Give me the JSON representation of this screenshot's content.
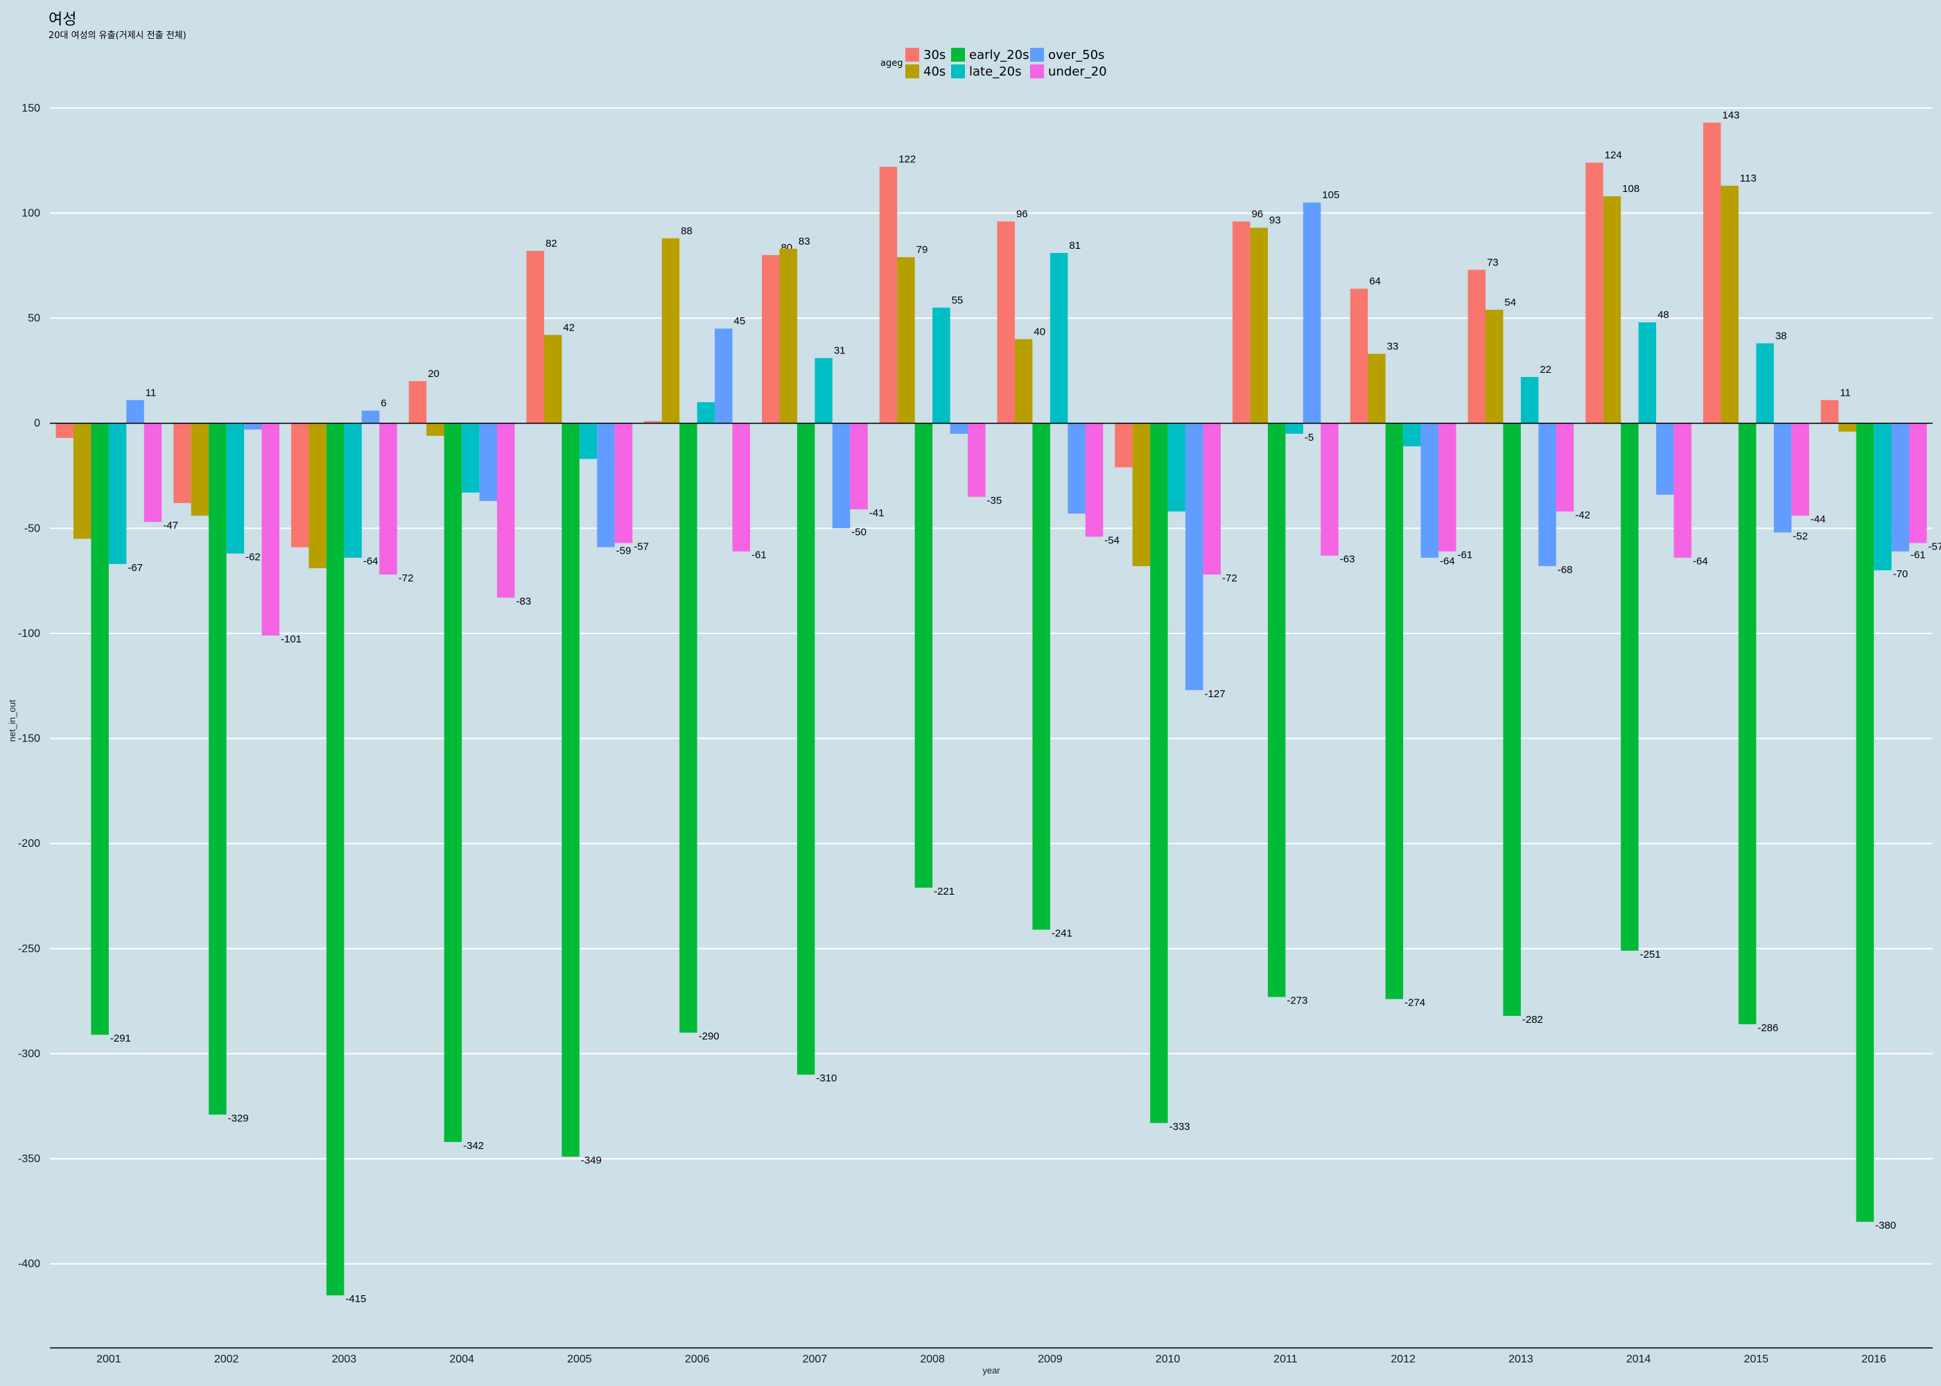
{
  "chart_data": {
    "type": "bar",
    "title": "여성",
    "subtitle": "20대 여성의 유출(거제시 전출 전체)",
    "xlabel": "year",
    "ylabel": "net_in_out",
    "ylim": [
      -440,
      175
    ],
    "yticks": [
      150,
      100,
      50,
      0,
      -50,
      -100,
      -150,
      -200,
      -250,
      -300,
      -350,
      -400
    ],
    "legend": {
      "title": "ageg",
      "placement": "top-center"
    },
    "categories": [
      "2001",
      "2002",
      "2003",
      "2004",
      "2005",
      "2006",
      "2007",
      "2008",
      "2009",
      "2010",
      "2011",
      "2012",
      "2013",
      "2014",
      "2015",
      "2016"
    ],
    "series": [
      {
        "name": "30s",
        "color": "#F8766D",
        "values": [
          -7,
          -38,
          -59,
          20,
          82,
          1,
          80,
          122,
          96,
          -21,
          96,
          64,
          73,
          124,
          143,
          11
        ]
      },
      {
        "name": "40s",
        "color": "#B79F00",
        "values": [
          -55,
          -44,
          -69,
          -6,
          42,
          88,
          83,
          79,
          40,
          -68,
          93,
          33,
          54,
          108,
          113,
          -4
        ]
      },
      {
        "name": "early_20s",
        "color": "#00BA38",
        "values": [
          -291,
          -329,
          -415,
          -342,
          -349,
          -290,
          -310,
          -221,
          -241,
          -333,
          -273,
          -274,
          -282,
          -251,
          -286,
          -380
        ]
      },
      {
        "name": "late_20s",
        "color": "#00BFC4",
        "values": [
          -67,
          -62,
          -64,
          -33,
          -17,
          10,
          31,
          55,
          81,
          -42,
          -5,
          -11,
          22,
          48,
          38,
          -70
        ]
      },
      {
        "name": "over_50s",
        "color": "#619CFF",
        "values": [
          11,
          -3,
          6,
          -37,
          -59,
          45,
          -50,
          -5,
          -43,
          -127,
          105,
          -64,
          -68,
          -34,
          -52,
          -61
        ]
      },
      {
        "name": "under_20",
        "color": "#F564E3",
        "values": [
          -47,
          -101,
          -72,
          -83,
          -57,
          -61,
          -41,
          -35,
          -54,
          -72,
          -63,
          -61,
          -42,
          -64,
          -44,
          -57
        ]
      }
    ],
    "grid": true
  }
}
